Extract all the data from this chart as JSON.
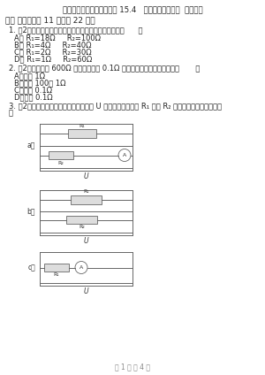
{
  "title": "新人教版物理九年级上学期 15.4   电阔的串联和并联  同步练习",
  "section": "一、 单选题（共 11 题，共 22 分）",
  "q1": "1. （2分）下图四个电阔分别如图所示，电阔最小的是（      ）",
  "q1a": "A、 R₁=18Ω     R₂=100Ω",
  "q1b": "B、 R₁=4Ω     R₂=40Ω",
  "q1c": "C、 R₁=2Ω     R₂=30Ω",
  "q1d": "D、 R₁=1Ω     R₂=60Ω",
  "q2": "2. （2分）把一个 600Ω 的电阔与一个 0.1Ω 的电阔并联，并联后的电阔（       ）",
  "q2a": "A、等于 1Ω",
  "q2b": "B、等于 100、 1Ω",
  "q2c": "C、小于 0.1Ω",
  "q2d": "D、大于 0.1Ω",
  "q3": "3. （2分）如图所示的四个电路中，电压 U 相同时，并联电阔 R₁ 大于 R₂ ，电流表示数最大的是（",
  "q3end": "）",
  "bg_color": "#ffffff",
  "text_color": "#333333",
  "footer": "第 1 页 共 4 页",
  "circuit_line_color": "#666666",
  "resistor_face": "#dddddd",
  "ammeter_face": "#ffffff"
}
